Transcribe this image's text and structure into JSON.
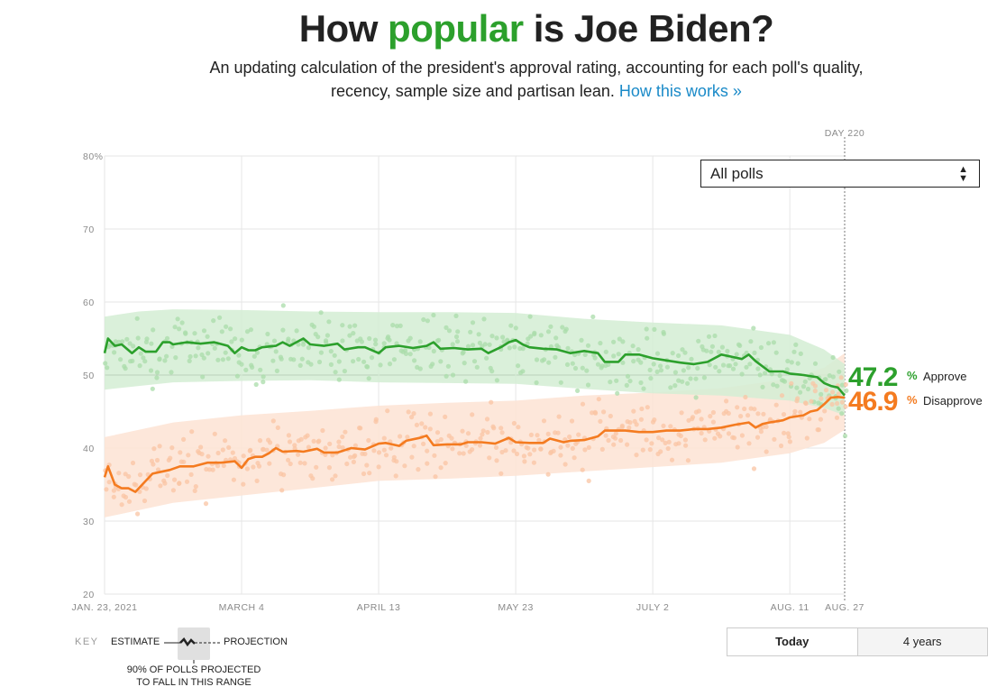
{
  "header": {
    "title_pre": "How ",
    "title_highlight": "popular",
    "title_post": " is Joe Biden?",
    "subtitle_line1": "An updating calculation of the president's approval rating, accounting for each poll's quality,",
    "subtitle_line2": "recency, sample size and partisan lean.",
    "link": "How this works »"
  },
  "filter": {
    "selected": "All polls"
  },
  "colors": {
    "approve": "#2ca02c",
    "disapprove": "#f47b20",
    "approve_band": "#d4edd4",
    "disapprove_band": "#fde3d3"
  },
  "current": {
    "approve_value": "47.2",
    "approve_label": "Approve",
    "disapprove_value": "46.9",
    "disapprove_label": "Disapprove",
    "pct": "%"
  },
  "key": {
    "label": "KEY",
    "estimate": "ESTIMATE",
    "projection": "PROJECTION",
    "range_line1": "90% OF POLLS PROJECTED",
    "range_line2": "TO FALL IN THIS RANGE"
  },
  "toggle": {
    "today": "Today",
    "four_years": "4 years"
  },
  "chart_data": {
    "type": "line",
    "title": "How popular is Joe Biden?",
    "ylim": [
      20,
      80
    ],
    "yticks": [
      20,
      30,
      40,
      50,
      60,
      70,
      80
    ],
    "ytick_labels": [
      "20",
      "30",
      "40",
      "50",
      "60",
      "70",
      "80%"
    ],
    "xlim": [
      0,
      216
    ],
    "xticks": [
      {
        "day": 0,
        "label": "JAN. 23, 2021"
      },
      {
        "day": 40,
        "label": "MARCH 4"
      },
      {
        "day": 80,
        "label": "APRIL 13"
      },
      {
        "day": 120,
        "label": "MAY 23"
      },
      {
        "day": 160,
        "label": "JULY 2"
      },
      {
        "day": 200,
        "label": "AUG. 11"
      },
      {
        "day": 216,
        "label": "AUG. 27"
      }
    ],
    "marker": {
      "day": 216,
      "label": "DAY 220"
    },
    "reference_line": 50,
    "series": [
      {
        "name": "Approve",
        "x": [
          0,
          1,
          3,
          5,
          8,
          10,
          12,
          15,
          17,
          19,
          20,
          24,
          28,
          32,
          36,
          38,
          40,
          42,
          44,
          46,
          50,
          52,
          54,
          58,
          60,
          64,
          68,
          70,
          74,
          76,
          80,
          82,
          86,
          90,
          94,
          96,
          98,
          102,
          106,
          110,
          112,
          116,
          118,
          120,
          122,
          124,
          128,
          132,
          136,
          140,
          144,
          146,
          150,
          152,
          156,
          160,
          164,
          168,
          172,
          176,
          180,
          182,
          186,
          188,
          190,
          194,
          198,
          200,
          204,
          208,
          210,
          212,
          214,
          216
        ],
        "values": [
          53,
          55,
          54,
          54.2,
          53,
          53.8,
          53.2,
          53.2,
          54.5,
          54.5,
          54.2,
          54.5,
          54.3,
          54.5,
          54,
          53,
          53.8,
          53.4,
          53.4,
          53.8,
          54,
          54.5,
          54,
          55,
          54.2,
          54,
          54.3,
          53.5,
          53.8,
          53.8,
          53,
          53.8,
          54,
          53.7,
          54,
          54.5,
          53.6,
          53.7,
          53.5,
          53.6,
          53,
          53.9,
          54.5,
          54.8,
          54.2,
          53.8,
          53.6,
          53.5,
          53,
          53.3,
          53,
          51.8,
          51.8,
          52.8,
          52.8,
          52.3,
          52,
          51.7,
          51.5,
          51.8,
          52.8,
          52.6,
          52.2,
          52.8,
          51.9,
          50.5,
          50.5,
          50.2,
          50,
          49.7,
          48.9,
          48.5,
          48.3,
          47.2
        ]
      },
      {
        "name": "Disapprove",
        "x": [
          0,
          1,
          3,
          5,
          7,
          9,
          11,
          14,
          16,
          19,
          22,
          26,
          30,
          34,
          38,
          40,
          42,
          44,
          46,
          48,
          50,
          52,
          56,
          58,
          62,
          64,
          68,
          72,
          76,
          80,
          82,
          86,
          88,
          92,
          94,
          96,
          100,
          104,
          106,
          110,
          114,
          118,
          120,
          124,
          128,
          130,
          134,
          136,
          140,
          144,
          146,
          150,
          152,
          156,
          160,
          164,
          168,
          172,
          176,
          180,
          184,
          188,
          190,
          192,
          194,
          198,
          200,
          204,
          206,
          208,
          210,
          212,
          214,
          216
        ],
        "values": [
          36,
          37.5,
          35,
          34.5,
          34.5,
          34,
          35,
          36.5,
          36.7,
          37,
          37.5,
          37.5,
          38,
          38,
          38.2,
          37.3,
          38.5,
          38.8,
          38.8,
          39.3,
          40,
          39.5,
          39.6,
          39.5,
          39.9,
          39.4,
          39.4,
          40,
          39.8,
          40.6,
          40.7,
          40.3,
          41,
          41.4,
          41.7,
          40.4,
          40.5,
          40.5,
          40.8,
          40.8,
          40.6,
          41.4,
          40.8,
          40.7,
          40.7,
          41.3,
          40.8,
          41,
          41.1,
          41.6,
          42.4,
          42.4,
          42.4,
          42.2,
          42.2,
          42.4,
          42.4,
          42.6,
          42.6,
          42.8,
          43.2,
          43.5,
          42.8,
          43.3,
          43.5,
          43.8,
          44.2,
          44.5,
          45,
          45.2,
          46,
          46.9,
          47,
          46.9
        ]
      }
    ],
    "approve_band": {
      "x": [
        0,
        10,
        20,
        40,
        60,
        80,
        100,
        120,
        140,
        160,
        180,
        200,
        210,
        216
      ],
      "lower": [
        48,
        48.5,
        49,
        49.2,
        49.3,
        49,
        48.9,
        48.8,
        48.1,
        47.5,
        47.2,
        46.5,
        45.5,
        44.5
      ],
      "upper": [
        58,
        58.7,
        59,
        58.9,
        58.7,
        58.6,
        58.6,
        58.5,
        57.7,
        57.2,
        56.8,
        55.5,
        53.5,
        51.5
      ]
    },
    "disapprove_band": {
      "x": [
        0,
        10,
        20,
        40,
        60,
        80,
        100,
        120,
        140,
        160,
        180,
        200,
        210,
        216
      ],
      "lower": [
        30.5,
        31.5,
        32.5,
        33.5,
        34.5,
        35.5,
        35.8,
        36.2,
        36.8,
        37.4,
        38,
        39.3,
        40.7,
        42.5
      ],
      "upper": [
        41.5,
        42.5,
        43.5,
        44.5,
        45.1,
        45.8,
        46.2,
        46.5,
        47.2,
        47.6,
        48.2,
        49.5,
        51,
        53
      ]
    }
  }
}
